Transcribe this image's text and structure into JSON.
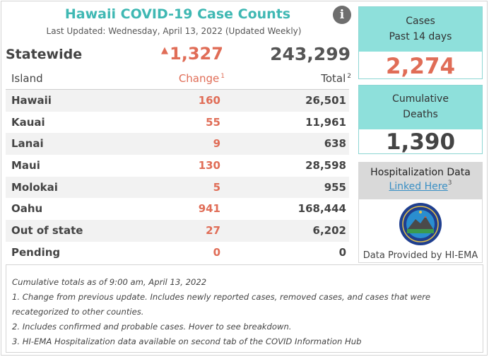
{
  "title": "Hawaii COVID-19 Case Counts",
  "last_updated": "Last Updated: Wednesday, April 13, 2022 (Updated Weekly)",
  "info_icon": "i",
  "statewide": {
    "label": "Statewide",
    "change": "1,327",
    "total": "243,299"
  },
  "table": {
    "headers": {
      "island": "Island",
      "change": "Change",
      "change_note": "1",
      "total": "Total",
      "total_note": "2"
    },
    "rows": [
      {
        "name": "Hawaii",
        "change": "160",
        "total": "26,501"
      },
      {
        "name": "Kauai",
        "change": "55",
        "total": "11,961"
      },
      {
        "name": "Lanai",
        "change": "9",
        "total": "638"
      },
      {
        "name": "Maui",
        "change": "130",
        "total": "28,598"
      },
      {
        "name": "Molokai",
        "change": "5",
        "total": "955"
      },
      {
        "name": "Oahu",
        "change": "941",
        "total": "168,444"
      },
      {
        "name": "Out of state",
        "change": "27",
        "total": "6,202"
      },
      {
        "name": "Pending",
        "change": "0",
        "total": "0"
      }
    ]
  },
  "cases_card": {
    "line1": "Cases",
    "line2": "Past 14 days",
    "value": "2,274"
  },
  "deaths_card": {
    "line1": "Cumulative",
    "line2": "Deaths",
    "value": "1,390"
  },
  "hospitalization": {
    "title": "Hospitalization Data",
    "link": "Linked Here",
    "link_note": "3",
    "provided_by": "Data Provided by HI-EMA"
  },
  "notes": [
    "Cumulative totals as of 9:00 am, April 13, 2022",
    "1. Change from previous update. Includes newly reported cases, removed cases, and cases that were",
    "recategorized to other counties.",
    "2. Includes confirmed and probable cases. Hover to see breakdown.",
    "3. HI-EMA Hospitalization data available on second tab of the COVID Information Hub"
  ],
  "colors": {
    "accent": "#3fb8b3",
    "card": "#8ee0db",
    "change": "#e06d57",
    "link": "#3a8fc4"
  }
}
